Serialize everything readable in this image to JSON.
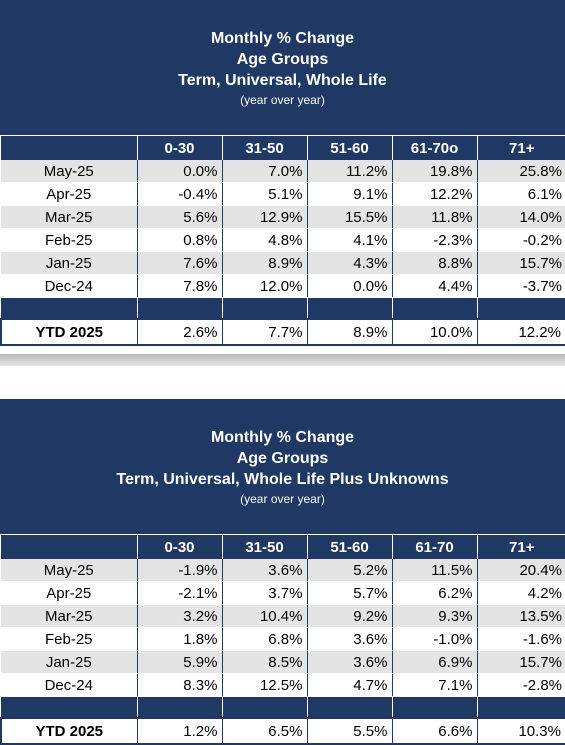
{
  "chart_data": [
    {
      "type": "table",
      "title_lines": [
        "Monthly % Change",
        "Age Groups",
        "Term, Universal, Whole Life"
      ],
      "subtitle": "(year over year)",
      "columns": [
        "0-30",
        "31-50",
        "51-60",
        "61-70o",
        "71+"
      ],
      "rows": [
        {
          "label": "May-25",
          "values": [
            "0.0%",
            "7.0%",
            "11.2%",
            "19.8%",
            "25.8%"
          ]
        },
        {
          "label": "Apr-25",
          "values": [
            "-0.4%",
            "5.1%",
            "9.1%",
            "12.2%",
            "6.1%"
          ]
        },
        {
          "label": "Mar-25",
          "values": [
            "5.6%",
            "12.9%",
            "15.5%",
            "11.8%",
            "14.0%"
          ]
        },
        {
          "label": "Feb-25",
          "values": [
            "0.8%",
            "4.8%",
            "4.1%",
            "-2.3%",
            "-0.2%"
          ]
        },
        {
          "label": "Jan-25",
          "values": [
            "7.6%",
            "8.9%",
            "4.3%",
            "8.8%",
            "15.7%"
          ]
        },
        {
          "label": "Dec-24",
          "values": [
            "7.8%",
            "12.0%",
            "0.0%",
            "4.4%",
            "-3.7%"
          ]
        }
      ],
      "ytd": {
        "label": "YTD 2025",
        "values": [
          "2.6%",
          "7.7%",
          "8.9%",
          "10.0%",
          "12.2%"
        ]
      }
    },
    {
      "type": "table",
      "title_lines": [
        "Monthly % Change",
        "Age Groups",
        "Term, Universal, Whole Life Plus Unknowns"
      ],
      "subtitle": "(year over year)",
      "columns": [
        "0-30",
        "31-50",
        "51-60",
        "61-70",
        "71+"
      ],
      "rows": [
        {
          "label": "May-25",
          "values": [
            "-1.9%",
            "3.6%",
            "5.2%",
            "11.5%",
            "20.4%"
          ]
        },
        {
          "label": "Apr-25",
          "values": [
            "-2.1%",
            "3.7%",
            "5.7%",
            "6.2%",
            "4.2%"
          ]
        },
        {
          "label": "Mar-25",
          "values": [
            "3.2%",
            "10.4%",
            "9.2%",
            "9.3%",
            "13.5%"
          ]
        },
        {
          "label": "Feb-25",
          "values": [
            "1.8%",
            "6.8%",
            "3.6%",
            "-1.0%",
            "-1.6%"
          ]
        },
        {
          "label": "Jan-25",
          "values": [
            "5.9%",
            "8.5%",
            "3.6%",
            "6.9%",
            "15.7%"
          ]
        },
        {
          "label": "Dec-24",
          "values": [
            "8.3%",
            "12.5%",
            "4.7%",
            "7.1%",
            "-2.8%"
          ]
        }
      ],
      "ytd": {
        "label": "YTD 2025",
        "values": [
          "1.2%",
          "6.5%",
          "5.5%",
          "6.6%",
          "10.3%"
        ]
      }
    }
  ],
  "colors": {
    "header_bg": "#1f3864",
    "stripe": "#e4e4e4"
  }
}
